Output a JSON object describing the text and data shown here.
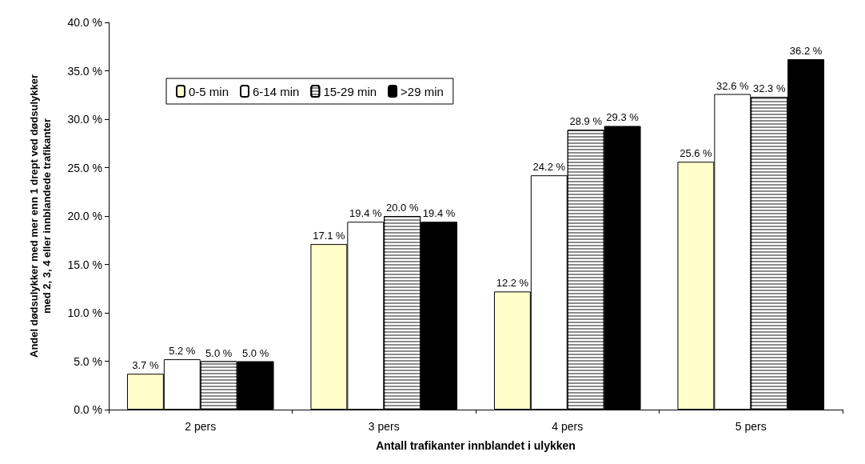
{
  "chart_data": {
    "type": "bar",
    "xlabel": "Antall trafikanter innblandet i ulykken",
    "ylabel": "Andel dødsulykker med mer enn 1 drept ved dødsulykker\nmed 2, 3, 4 eller innblandede trafikanter",
    "categories": [
      "2 pers",
      "3 pers",
      "4 pers",
      "5 pers"
    ],
    "series": [
      {
        "name": "0-5 min",
        "color": "#ffffcc",
        "values": [
          3.7,
          17.1,
          12.2,
          25.6
        ],
        "value_labels": [
          "3.7 %",
          "17.1 %",
          "12.2 %",
          "25.6 %"
        ]
      },
      {
        "name": "6-14 min",
        "color": "#ffffff",
        "values": [
          5.2,
          19.4,
          24.2,
          32.6
        ],
        "value_labels": [
          "5.2 %",
          "19.4 %",
          "24.2 %",
          "32.6 %"
        ]
      },
      {
        "name": "15-29 min",
        "color": "#8c8c8c",
        "values": [
          5.0,
          20.0,
          28.9,
          32.3
        ],
        "value_labels": [
          "5.0 %",
          "20.0 %",
          "28.9 %",
          "32.3 %"
        ]
      },
      {
        "name": ">29 min",
        "color": "#000000",
        "values": [
          5.0,
          19.4,
          29.3,
          36.2
        ],
        "value_labels": [
          "5.0 %",
          "19.4 %",
          "29.3 %",
          "36.2 %"
        ]
      }
    ],
    "ylim": [
      0,
      40
    ],
    "yticks": [
      {
        "value": 0,
        "label": "0.0 %"
      },
      {
        "value": 5,
        "label": "5.0 %"
      },
      {
        "value": 10,
        "label": "10.0 %"
      },
      {
        "value": 15,
        "label": "15.0 %"
      },
      {
        "value": 20,
        "label": "20.0 %"
      },
      {
        "value": 25,
        "label": "25.0 %"
      },
      {
        "value": 30,
        "label": "30.0 %"
      },
      {
        "value": 35,
        "label": "35.0 %"
      },
      {
        "value": 40,
        "label": "40.0 %"
      }
    ],
    "grid": false,
    "legend": "top left"
  }
}
